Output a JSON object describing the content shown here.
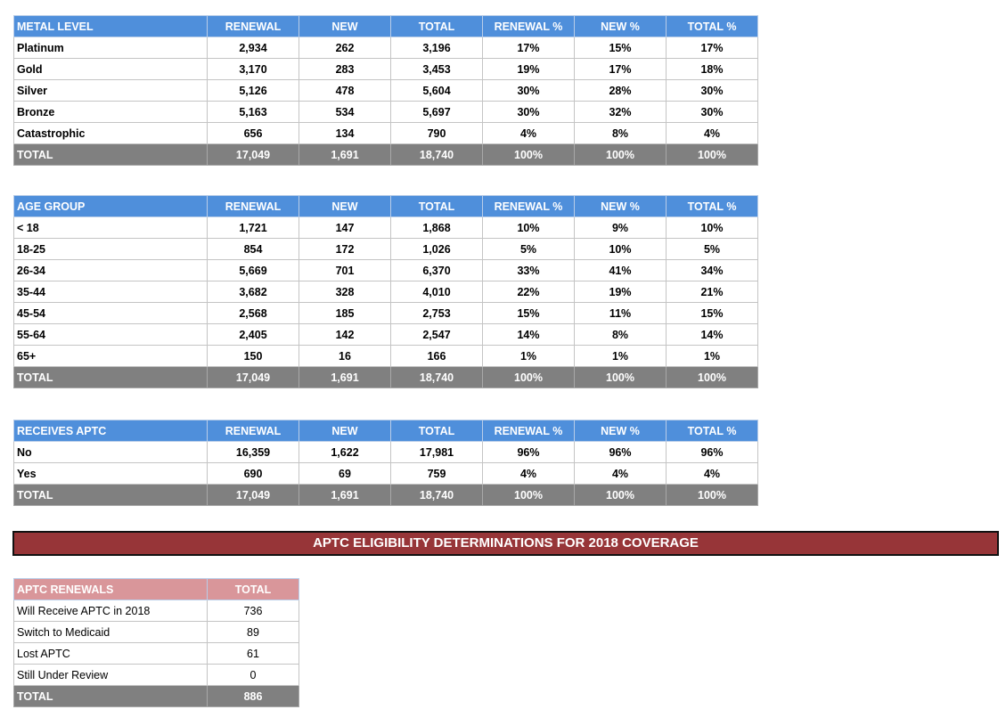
{
  "colors": {
    "header_blue": "#4f8fdb",
    "total_gray": "#808080",
    "banner_red": "#973538",
    "header_pink": "#d9969a"
  },
  "tables": [
    {
      "headers": [
        "METAL LEVEL",
        "RENEWAL",
        "NEW",
        "TOTAL",
        "RENEWAL %",
        "NEW %",
        "TOTAL %"
      ],
      "rows": [
        [
          "Platinum",
          "2,934",
          "262",
          "3,196",
          "17%",
          "15%",
          "17%"
        ],
        [
          "Gold",
          "3,170",
          "283",
          "3,453",
          "19%",
          "17%",
          "18%"
        ],
        [
          "Silver",
          "5,126",
          "478",
          "5,604",
          "30%",
          "28%",
          "30%"
        ],
        [
          "Bronze",
          "5,163",
          "534",
          "5,697",
          "30%",
          "32%",
          "30%"
        ],
        [
          "Catastrophic",
          "656",
          "134",
          "790",
          "4%",
          "8%",
          "4%"
        ]
      ],
      "total": [
        "TOTAL",
        "17,049",
        "1,691",
        "18,740",
        "100%",
        "100%",
        "100%"
      ]
    },
    {
      "headers": [
        "AGE GROUP",
        "RENEWAL",
        "NEW",
        "TOTAL",
        "RENEWAL %",
        "NEW %",
        "TOTAL %"
      ],
      "rows": [
        [
          "< 18",
          "1,721",
          "147",
          "1,868",
          "10%",
          "9%",
          "10%"
        ],
        [
          "18-25",
          "854",
          "172",
          "1,026",
          "5%",
          "10%",
          "5%"
        ],
        [
          "26-34",
          "5,669",
          "701",
          "6,370",
          "33%",
          "41%",
          "34%"
        ],
        [
          "35-44",
          "3,682",
          "328",
          "4,010",
          "22%",
          "19%",
          "21%"
        ],
        [
          "45-54",
          "2,568",
          "185",
          "2,753",
          "15%",
          "11%",
          "15%"
        ],
        [
          "55-64",
          "2,405",
          "142",
          "2,547",
          "14%",
          "8%",
          "14%"
        ],
        [
          "65+",
          "150",
          "16",
          "166",
          "1%",
          "1%",
          "1%"
        ]
      ],
      "total": [
        "TOTAL",
        "17,049",
        "1,691",
        "18,740",
        "100%",
        "100%",
        "100%"
      ]
    },
    {
      "headers": [
        "RECEIVES APTC",
        "RENEWAL",
        "NEW",
        "TOTAL",
        "RENEWAL %",
        "NEW %",
        "TOTAL %"
      ],
      "rows": [
        [
          "No",
          "16,359",
          "1,622",
          "17,981",
          "96%",
          "96%",
          "96%"
        ],
        [
          "Yes",
          "690",
          "69",
          "759",
          "4%",
          "4%",
          "4%"
        ]
      ],
      "total": [
        "TOTAL",
        "17,049",
        "1,691",
        "18,740",
        "100%",
        "100%",
        "100%"
      ]
    },
    {
      "headers": [
        "APTC RENEWALS",
        "TOTAL"
      ],
      "rows": [
        [
          "Will Receive APTC in 2018",
          "736"
        ],
        [
          "Switch to Medicaid",
          "89"
        ],
        [
          "Lost APTC",
          "61"
        ],
        [
          "Still Under Review",
          "0"
        ]
      ],
      "total": [
        "TOTAL",
        "886"
      ]
    }
  ],
  "banner": "APTC ELIGIBILITY DETERMINATIONS FOR 2018 COVERAGE"
}
